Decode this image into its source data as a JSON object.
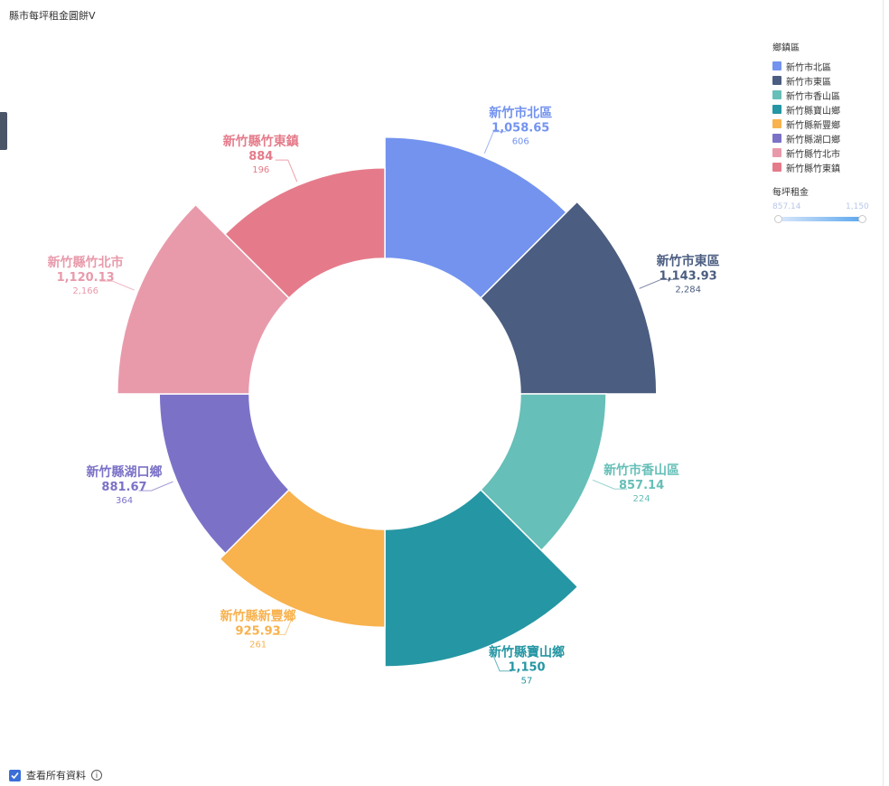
{
  "page": {
    "title": "縣市每坪租金圓餅V"
  },
  "legend": {
    "title": "鄉鎮區",
    "items": [
      {
        "label": "新竹市北區",
        "color": "#7393ef"
      },
      {
        "label": "新竹市東區",
        "color": "#4b5d80"
      },
      {
        "label": "新竹市香山區",
        "color": "#66bfb8"
      },
      {
        "label": "新竹縣寶山鄉",
        "color": "#2596a3"
      },
      {
        "label": "新竹縣新豐鄉",
        "color": "#f8b24e"
      },
      {
        "label": "新竹縣湖口鄉",
        "color": "#7b72c8"
      },
      {
        "label": "新竹縣竹北市",
        "color": "#e89aab"
      },
      {
        "label": "新竹縣竹東鎮",
        "color": "#e57b8a"
      }
    ]
  },
  "range": {
    "title": "每坪租金",
    "min": "857.14",
    "max": "1,150"
  },
  "footer": {
    "checkbox_label": "查看所有資料",
    "checked": true
  },
  "chart_data": {
    "type": "pie",
    "variant": "nightingale-rose-donut",
    "size_encodes": "每坪租金",
    "angle_encodes": "count",
    "slices": [
      {
        "name": "新竹市北區",
        "value": 1058.65,
        "value_label": "1,058.65",
        "count": 606,
        "count_label": "606",
        "color": "#7393ef"
      },
      {
        "name": "新竹市東區",
        "value": 1143.93,
        "value_label": "1,143.93",
        "count": 2284,
        "count_label": "2,284",
        "color": "#4b5d80"
      },
      {
        "name": "新竹市香山區",
        "value": 857.14,
        "value_label": "857.14",
        "count": 224,
        "count_label": "224",
        "color": "#66bfb8"
      },
      {
        "name": "新竹縣寶山鄉",
        "value": 1150,
        "value_label": "1,150",
        "count": 57,
        "count_label": "57",
        "color": "#2596a3"
      },
      {
        "name": "新竹縣新豐鄉",
        "value": 925.93,
        "value_label": "925.93",
        "count": 261,
        "count_label": "261",
        "color": "#f8b24e"
      },
      {
        "name": "新竹縣湖口鄉",
        "value": 881.67,
        "value_label": "881.67",
        "count": 364,
        "count_label": "364",
        "color": "#7b72c8"
      },
      {
        "name": "新竹縣竹北市",
        "value": 1120.13,
        "value_label": "1,120.13",
        "count": 2166,
        "count_label": "2,166",
        "color": "#e89aab"
      },
      {
        "name": "新竹縣竹東鎮",
        "value": 884,
        "value_label": "884",
        "count": 196,
        "count_label": "196",
        "color": "#e57b8a"
      }
    ]
  }
}
